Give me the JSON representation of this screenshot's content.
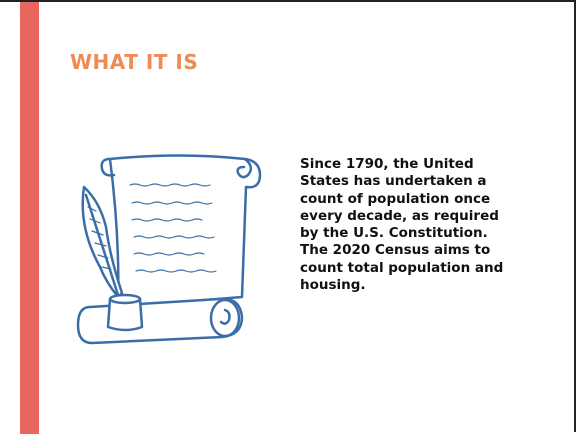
{
  "slide": {
    "title": "WHAT IT IS",
    "body_lines": [
      "Since 1790, the United",
      "States has undertaken a",
      "count of population once",
      "every decade, as required",
      "by the U.S. Constitution.",
      "The 2020 Census aims to",
      "count total population and",
      "housing."
    ]
  }
}
